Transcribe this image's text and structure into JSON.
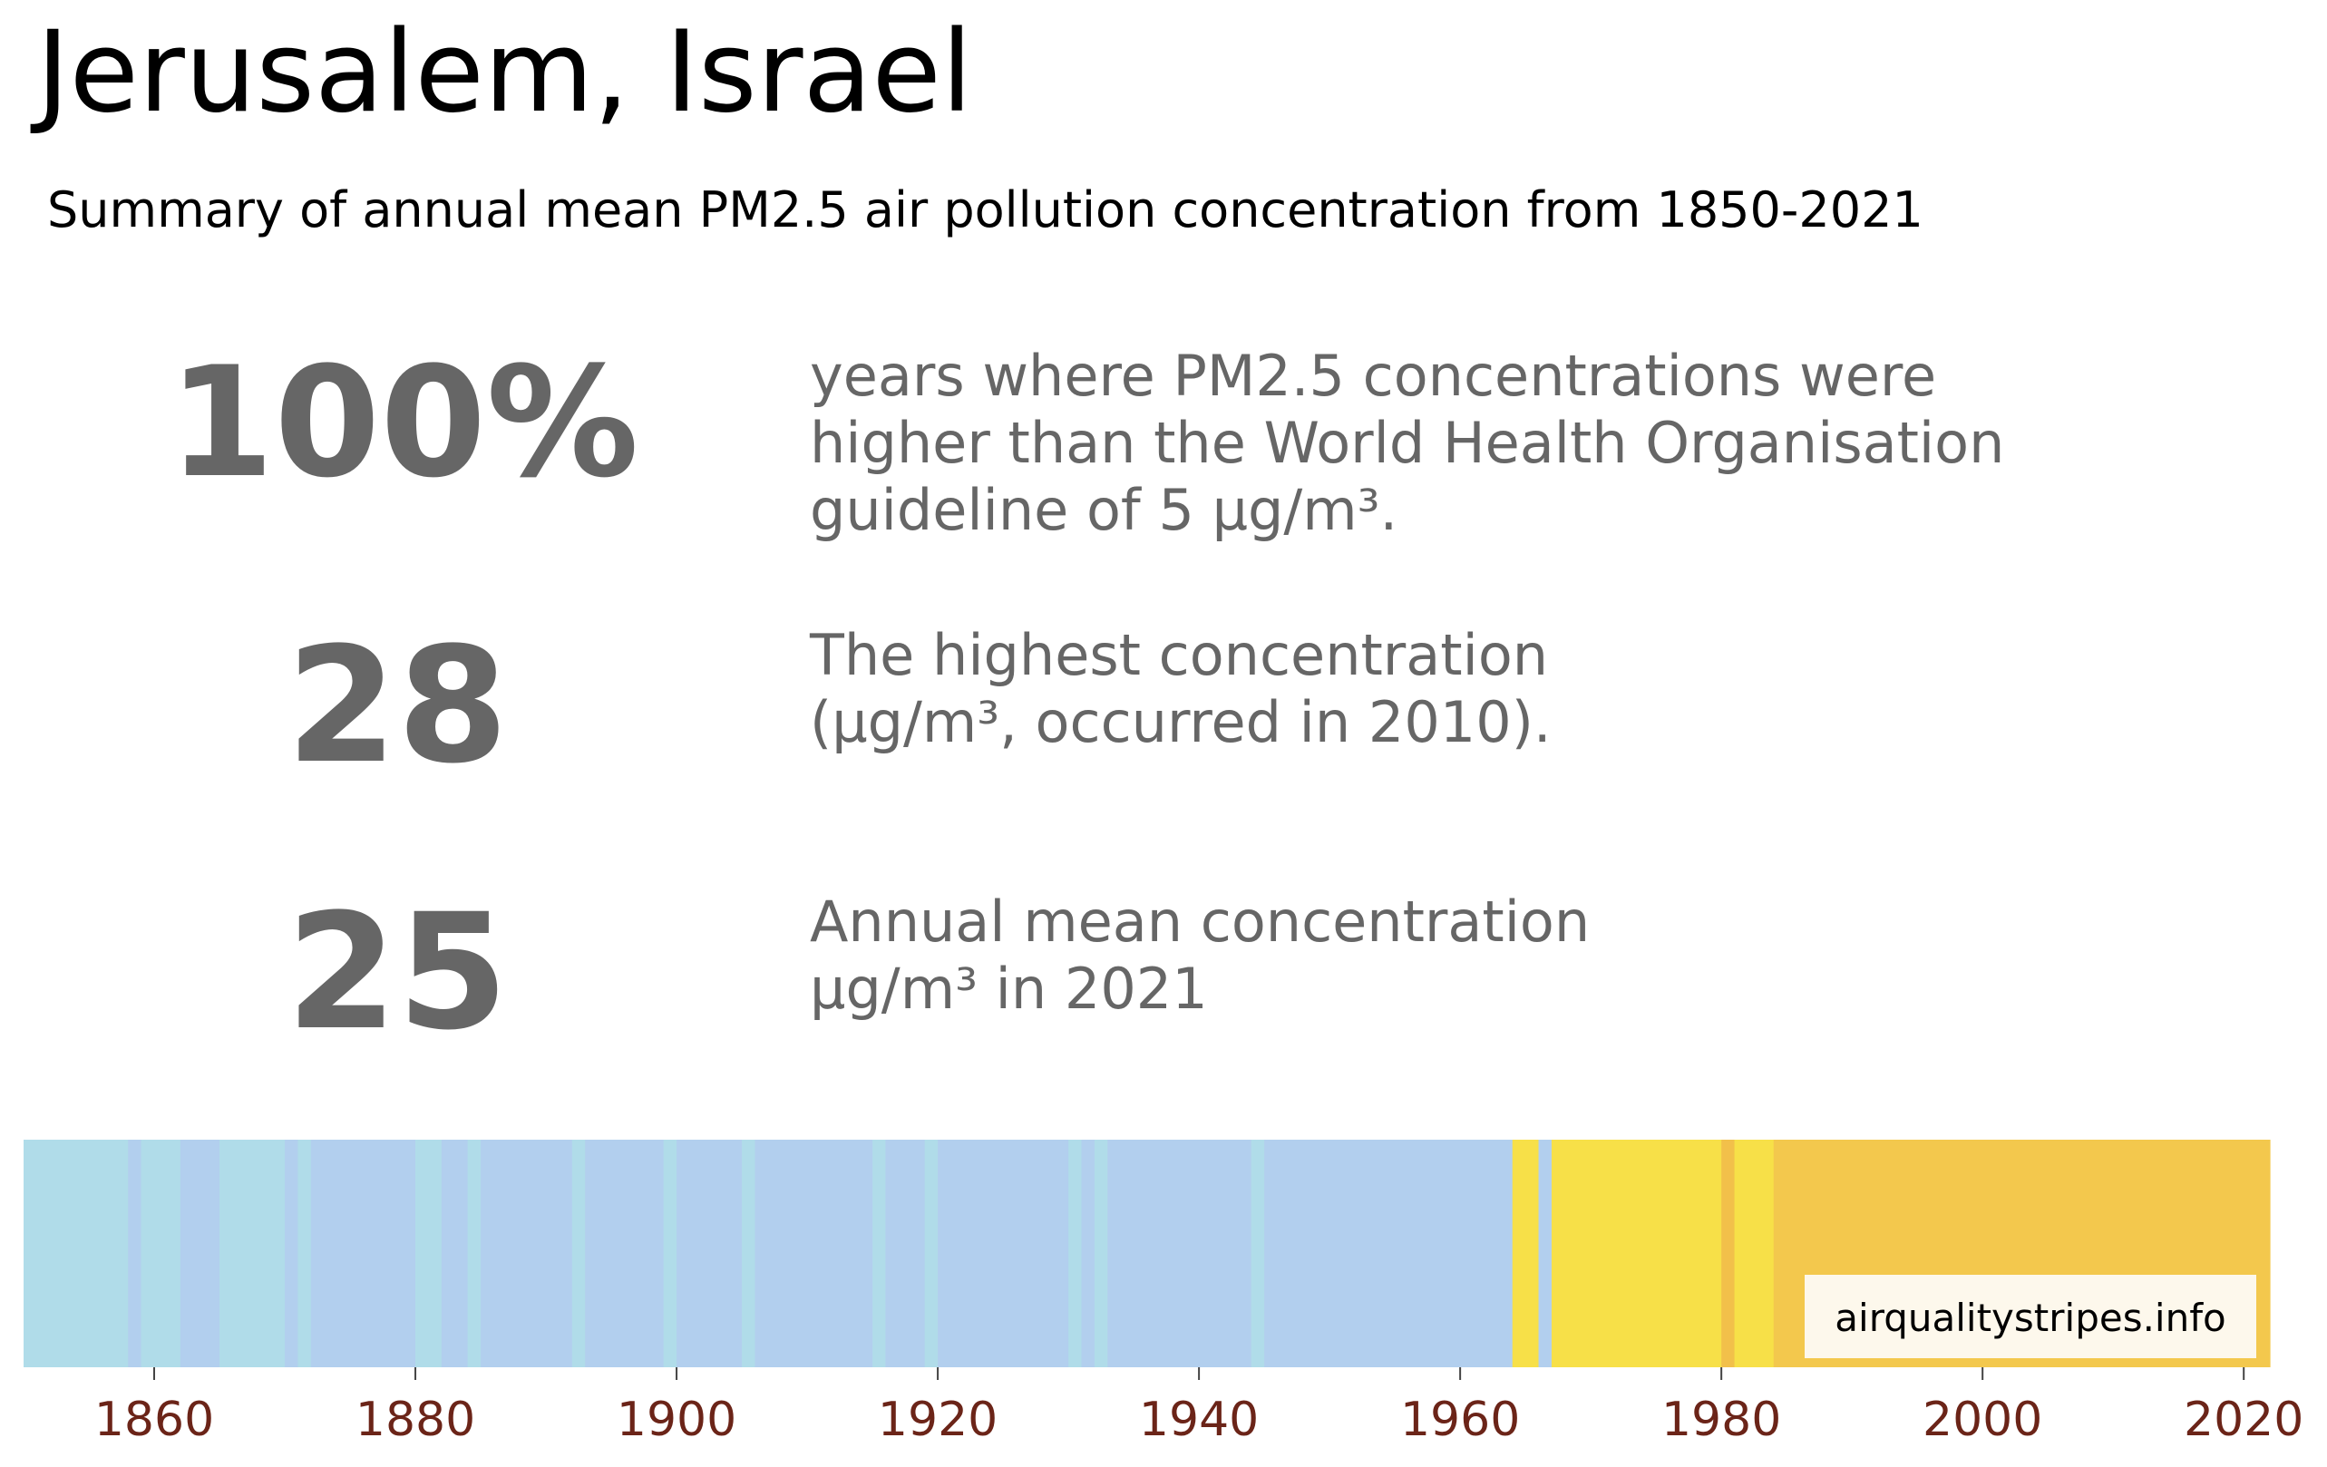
{
  "title": "Jerusalem, Israel",
  "subtitle": "Summary of annual mean PM2.5 air pollution concentration from 1850-2021",
  "stats": [
    {
      "value": "100%",
      "lines": [
        "years where PM2.5 concentrations were",
        "higher than the World Health Organisation",
        "guideline of 5 µg/m³."
      ]
    },
    {
      "value": "28",
      "lines": [
        "The highest concentration",
        "(µg/m³, occurred in 2010)."
      ]
    },
    {
      "value": "25",
      "lines": [
        "Annual mean concentration",
        "µg/m³ in 2021"
      ]
    }
  ],
  "watermark": "airqualitystripes.info",
  "colors": {
    "stat_text": "#666666",
    "tick_label": "#6b2418",
    "stripe_lightblue": "#b0dce9",
    "stripe_blue": "#b2cfee",
    "stripe_yellow": "#f7e048",
    "stripe_orange": "#f3c84d",
    "stripe_orange_dark": "#f2c04a"
  },
  "chart_data": {
    "type": "heatmap",
    "title": "",
    "xlabel": "",
    "ylabel": "",
    "xlim": [
      1850,
      2022
    ],
    "x_ticks": [
      1860,
      1880,
      1900,
      1920,
      1940,
      1960,
      1980,
      2000,
      2020
    ],
    "grid": false,
    "segments": [
      {
        "start": 1850,
        "end": 1858,
        "color": "#b0dce9"
      },
      {
        "start": 1858,
        "end": 1859,
        "color": "#b2cfee"
      },
      {
        "start": 1859,
        "end": 1862,
        "color": "#b0dce9"
      },
      {
        "start": 1862,
        "end": 1865,
        "color": "#b2cfee"
      },
      {
        "start": 1865,
        "end": 1870,
        "color": "#b0dce9"
      },
      {
        "start": 1870,
        "end": 1871,
        "color": "#b2cfee"
      },
      {
        "start": 1871,
        "end": 1872,
        "color": "#b0dce9"
      },
      {
        "start": 1872,
        "end": 1880,
        "color": "#b2cfee"
      },
      {
        "start": 1880,
        "end": 1882,
        "color": "#b0dce9"
      },
      {
        "start": 1882,
        "end": 1884,
        "color": "#b2cfee"
      },
      {
        "start": 1884,
        "end": 1885,
        "color": "#b0dce9"
      },
      {
        "start": 1885,
        "end": 1892,
        "color": "#b2cfee"
      },
      {
        "start": 1892,
        "end": 1893,
        "color": "#b0dce9"
      },
      {
        "start": 1893,
        "end": 1899,
        "color": "#b2cfee"
      },
      {
        "start": 1899,
        "end": 1900,
        "color": "#b0dce9"
      },
      {
        "start": 1900,
        "end": 1905,
        "color": "#b2cfee"
      },
      {
        "start": 1905,
        "end": 1906,
        "color": "#b0dce9"
      },
      {
        "start": 1906,
        "end": 1915,
        "color": "#b2cfee"
      },
      {
        "start": 1915,
        "end": 1916,
        "color": "#b0dce9"
      },
      {
        "start": 1916,
        "end": 1919,
        "color": "#b2cfee"
      },
      {
        "start": 1919,
        "end": 1920,
        "color": "#b0dce9"
      },
      {
        "start": 1920,
        "end": 1930,
        "color": "#b2cfee"
      },
      {
        "start": 1930,
        "end": 1931,
        "color": "#b0dce9"
      },
      {
        "start": 1931,
        "end": 1932,
        "color": "#b2cfee"
      },
      {
        "start": 1932,
        "end": 1933,
        "color": "#b0dce9"
      },
      {
        "start": 1933,
        "end": 1944,
        "color": "#b2cfee"
      },
      {
        "start": 1944,
        "end": 1945,
        "color": "#b0dce9"
      },
      {
        "start": 1945,
        "end": 1964,
        "color": "#b2cfee"
      },
      {
        "start": 1964,
        "end": 1966,
        "color": "#f7e048"
      },
      {
        "start": 1966,
        "end": 1967,
        "color": "#b2cfee"
      },
      {
        "start": 1967,
        "end": 1980,
        "color": "#f7e048"
      },
      {
        "start": 1980,
        "end": 1981,
        "color": "#f2c04a"
      },
      {
        "start": 1981,
        "end": 1984,
        "color": "#f7e048"
      },
      {
        "start": 1984,
        "end": 2022,
        "color": "#f3c84d"
      }
    ]
  }
}
